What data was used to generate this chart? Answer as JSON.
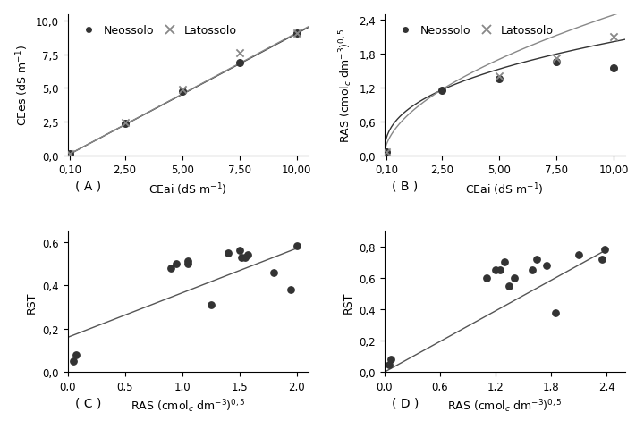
{
  "panel_A": {
    "title": "( A )",
    "xlim": [
      0.0,
      10.5
    ],
    "ylim": [
      0.0,
      10.5
    ],
    "xticks": [
      0.1,
      2.5,
      5.0,
      7.5,
      10.0
    ],
    "yticks": [
      0.0,
      2.5,
      5.0,
      7.5,
      10.0
    ],
    "neossolo_pts": [
      [
        0.1,
        0.09
      ],
      [
        2.5,
        2.35
      ],
      [
        5.0,
        4.75
      ],
      [
        7.5,
        6.9
      ],
      [
        10.0,
        9.05
      ]
    ],
    "latossolo_pts": [
      [
        0.1,
        0.1
      ],
      [
        2.5,
        2.45
      ],
      [
        5.0,
        4.9
      ],
      [
        7.5,
        7.6
      ],
      [
        10.0,
        9.1
      ]
    ]
  },
  "panel_B": {
    "title": "( B )",
    "xlim": [
      0.0,
      10.5
    ],
    "ylim": [
      0.0,
      2.5
    ],
    "xticks": [
      0.1,
      2.5,
      5.0,
      7.5,
      10.0
    ],
    "yticks": [
      0.0,
      0.6,
      1.2,
      1.8,
      2.4
    ],
    "neossolo_pts": [
      [
        0.1,
        0.05
      ],
      [
        2.5,
        1.15
      ],
      [
        5.0,
        1.35
      ],
      [
        7.5,
        1.65
      ],
      [
        10.0,
        1.55
      ]
    ],
    "latossolo_pts": [
      [
        0.1,
        0.05
      ],
      [
        5.0,
        1.4
      ],
      [
        7.5,
        1.72
      ],
      [
        10.0,
        2.1
      ]
    ]
  },
  "panel_C": {
    "title": "( C )",
    "xlim": [
      0.0,
      2.1
    ],
    "ylim": [
      0.0,
      0.65
    ],
    "xticks": [
      0.0,
      0.5,
      1.0,
      1.5,
      2.0
    ],
    "yticks": [
      0.0,
      0.2,
      0.4,
      0.6
    ],
    "scatter_x": [
      0.05,
      0.07,
      0.9,
      0.95,
      1.05,
      1.05,
      1.25,
      1.4,
      1.5,
      1.52,
      1.55,
      1.57,
      1.8,
      1.95,
      2.0
    ],
    "scatter_y": [
      0.05,
      0.08,
      0.48,
      0.5,
      0.5,
      0.51,
      0.31,
      0.55,
      0.56,
      0.53,
      0.53,
      0.54,
      0.46,
      0.38,
      0.58
    ],
    "line_x": [
      0.0,
      2.0
    ],
    "line_y": [
      0.16,
      0.57
    ]
  },
  "panel_D": {
    "title": "( D )",
    "xlim": [
      0.0,
      2.6
    ],
    "ylim": [
      0.0,
      0.9
    ],
    "xticks": [
      0.0,
      0.6,
      1.2,
      1.8,
      2.4
    ],
    "yticks": [
      0.0,
      0.2,
      0.4,
      0.6,
      0.8
    ],
    "scatter_x": [
      0.05,
      0.07,
      1.1,
      1.2,
      1.25,
      1.3,
      1.35,
      1.4,
      1.6,
      1.65,
      1.75,
      1.85,
      2.1,
      2.35,
      2.38
    ],
    "scatter_y": [
      0.05,
      0.08,
      0.6,
      0.65,
      0.65,
      0.7,
      0.55,
      0.6,
      0.65,
      0.72,
      0.68,
      0.38,
      0.75,
      0.72,
      0.78
    ],
    "line_x": [
      0.0,
      2.4
    ],
    "line_y": [
      0.0,
      0.78
    ]
  },
  "legend_neossolo": "Neossolo",
  "legend_latossolo": "Latossolo",
  "color_neo": "#333333",
  "color_lat": "#888888",
  "line_color": "#555555",
  "fontsize": 9,
  "tick_fontsize": 8.5
}
